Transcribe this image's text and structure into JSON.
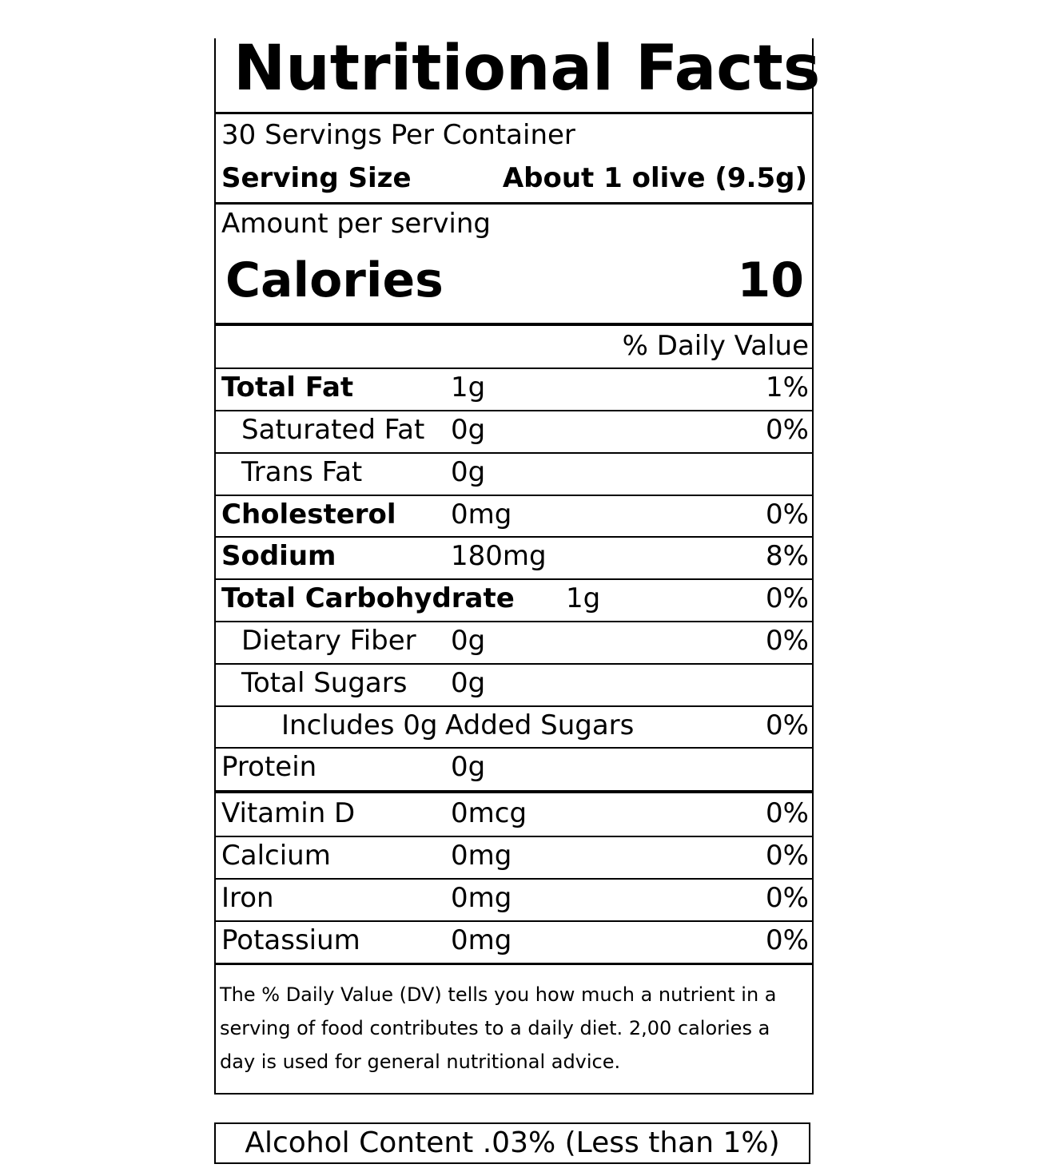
{
  "title": "Nutritional Facts",
  "servings_per_container": "30 Servings Per Container",
  "serving_size_label": "Serving Size",
  "serving_size_value": "About 1 olive (9.5g)",
  "amount_per_serving": "Amount per serving",
  "calories_label": "Calories",
  "calories_value": "10",
  "daily_value_header": "% Daily Value",
  "nutrients": [
    {
      "name": "Total Fat",
      "amount": "1g",
      "dv": "1%"
    },
    {
      "name": "Saturated Fat",
      "amount": "0g",
      "dv": "0%"
    },
    {
      "name": "Trans Fat",
      "amount": "0g",
      "dv": ""
    },
    {
      "name": "Cholesterol",
      "amount": "0mg",
      "dv": "0%"
    },
    {
      "name": "Sodium",
      "amount": "180mg",
      "dv": "8%"
    },
    {
      "name": "Total Carbohydrate",
      "amount": "1g",
      "dv": "0%"
    },
    {
      "name": "Dietary Fiber",
      "amount": "0g",
      "dv": "0%"
    },
    {
      "name": "Total Sugars",
      "amount": "0g",
      "dv": ""
    },
    {
      "name": "Includes 0g",
      "amount": "Added Sugars",
      "dv": "0%"
    },
    {
      "name": "Protein",
      "amount": "0g",
      "dv": ""
    }
  ],
  "vitamins": [
    {
      "name": "Vitamin D",
      "amount": "0mcg",
      "dv": "0%"
    },
    {
      "name": "Calcium",
      "amount": "0mg",
      "dv": "0%"
    },
    {
      "name": "Iron",
      "amount": "0mg",
      "dv": "0%"
    },
    {
      "name": "Potassium",
      "amount": "0mg",
      "dv": "0%"
    }
  ],
  "footnote": "The % Daily Value (DV) tells you how much a nutrient in a serving of food contributes to a daily diet.  2,00 calories a day is used for general nutritional advice.",
  "alcohol_content": "Alcohol Content .03% (Less than 1%)"
}
